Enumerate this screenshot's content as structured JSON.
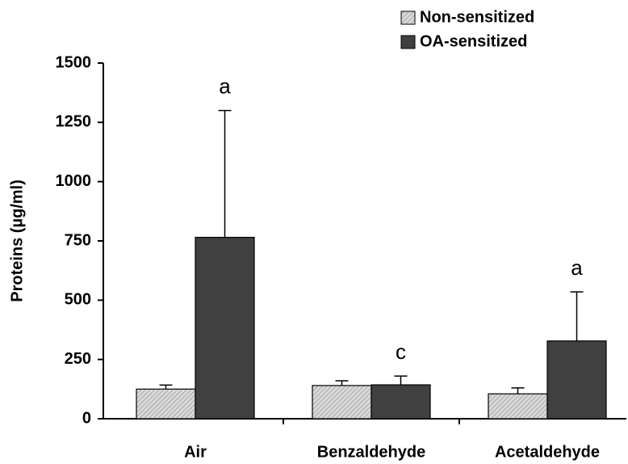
{
  "chart_data": {
    "type": "bar",
    "y_label": "Proteins (µg/ml)",
    "categories": [
      "Air",
      "Benzaldehyde",
      "Acetaldehyde"
    ],
    "series": [
      {
        "name": "Non-sensitized",
        "color": "#d9d9d9",
        "pattern": "hatch",
        "values": [
          125,
          140,
          105
        ],
        "errors": [
          17,
          20,
          25
        ]
      },
      {
        "name": "OA-sensitized",
        "color": "#404040",
        "values": [
          765,
          143,
          328
        ],
        "errors": [
          535,
          37,
          207
        ],
        "annotations": [
          "a",
          "c",
          "a"
        ]
      }
    ],
    "ylim": [
      0,
      1500
    ],
    "yticks": [
      0,
      250,
      500,
      750,
      1000,
      1250,
      1500
    ],
    "legend": "top-right"
  }
}
